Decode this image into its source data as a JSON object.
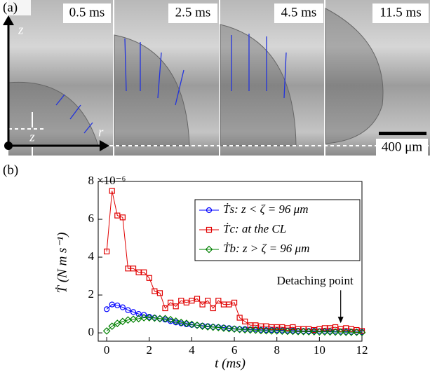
{
  "panel_a": {
    "label": "(a)",
    "frame_labels": [
      "0.5 ms",
      "2.5 ms",
      "4.5 ms",
      "11.5 ms"
    ],
    "z_axis": "z",
    "r_axis": "r",
    "zeta_label": "z",
    "scale_bar": "400 μm"
  },
  "chart_data": {
    "type": "line",
    "panel_label": "(b)",
    "x_label": "t (ms)",
    "y_label": "Ṫ (N m s⁻¹)",
    "y_multiplier": "×10⁻⁶",
    "x": [
      0,
      0.25,
      0.5,
      0.75,
      1,
      1.25,
      1.5,
      1.75,
      2,
      2.25,
      2.5,
      2.75,
      3,
      3.25,
      3.5,
      3.75,
      4,
      4.25,
      4.5,
      4.75,
      5,
      5.25,
      5.5,
      5.75,
      6,
      6.25,
      6.5,
      6.75,
      7,
      7.25,
      7.5,
      7.75,
      8,
      8.25,
      8.5,
      8.75,
      9,
      9.25,
      9.5,
      9.75,
      10,
      10.25,
      10.5,
      10.75,
      11,
      11.25,
      11.5,
      11.75,
      12
    ],
    "series": [
      {
        "name": "Ṫs: z < ζ = 96 μm",
        "color": "#0000ff",
        "marker": "circle",
        "values": [
          1.25,
          1.5,
          1.45,
          1.35,
          1.2,
          1.1,
          1.0,
          0.95,
          0.85,
          0.8,
          0.75,
          0.7,
          0.62,
          0.55,
          0.5,
          0.45,
          0.42,
          0.4,
          0.38,
          0.35,
          0.32,
          0.3,
          0.28,
          0.25,
          0.22,
          0.2,
          0.2,
          0.18,
          0.18,
          0.16,
          0.15,
          0.15,
          0.14,
          0.13,
          0.12,
          0.12,
          0.11,
          0.1,
          0.1,
          0.1,
          0.09,
          0.08,
          0.08,
          0.07,
          0.07,
          0.06,
          0.06,
          0.05,
          0.05
        ]
      },
      {
        "name": "Ṫc: at the CL",
        "color": "#e00000",
        "marker": "square",
        "values": [
          4.3,
          7.5,
          6.2,
          6.1,
          3.4,
          3.4,
          3.2,
          3.2,
          2.9,
          2.2,
          2.1,
          1.3,
          1.6,
          1.4,
          1.7,
          1.6,
          1.7,
          1.8,
          1.5,
          1.7,
          1.3,
          1.7,
          1.5,
          1.5,
          1.6,
          0.8,
          0.6,
          0.4,
          0.4,
          0.35,
          0.35,
          0.3,
          0.3,
          0.3,
          0.25,
          0.3,
          0.2,
          0.2,
          0.2,
          0.15,
          0.2,
          0.25,
          0.25,
          0.3,
          0.2,
          0.25,
          0.2,
          0.15,
          0.1
        ]
      },
      {
        "name": "Ṫb: z > ζ = 96 μm",
        "color": "#008000",
        "marker": "diamond",
        "values": [
          0.1,
          0.35,
          0.5,
          0.6,
          0.68,
          0.72,
          0.75,
          0.8,
          0.8,
          0.78,
          0.75,
          0.75,
          0.7,
          0.62,
          0.55,
          0.5,
          0.45,
          0.4,
          0.35,
          0.32,
          0.3,
          0.28,
          0.25,
          0.22,
          0.2,
          0.18,
          0.16,
          0.15,
          0.14,
          0.12,
          0.11,
          0.1,
          0.1,
          0.09,
          0.08,
          0.08,
          0.07,
          0.07,
          0.06,
          0.06,
          0.05,
          0.05,
          0.05,
          0.04,
          0.04,
          0.03,
          0.03,
          0.03,
          0.02
        ]
      }
    ],
    "xlim": [
      -0.4,
      12
    ],
    "ylim": [
      -0.44,
      8
    ],
    "xticks": [
      0,
      2,
      4,
      6,
      8,
      10,
      12
    ],
    "yticks": [
      0,
      2,
      4,
      6,
      8
    ],
    "legend": "upper right",
    "annotations": [
      {
        "text": "Detaching point",
        "x": 11,
        "y": 0.4
      }
    ]
  }
}
